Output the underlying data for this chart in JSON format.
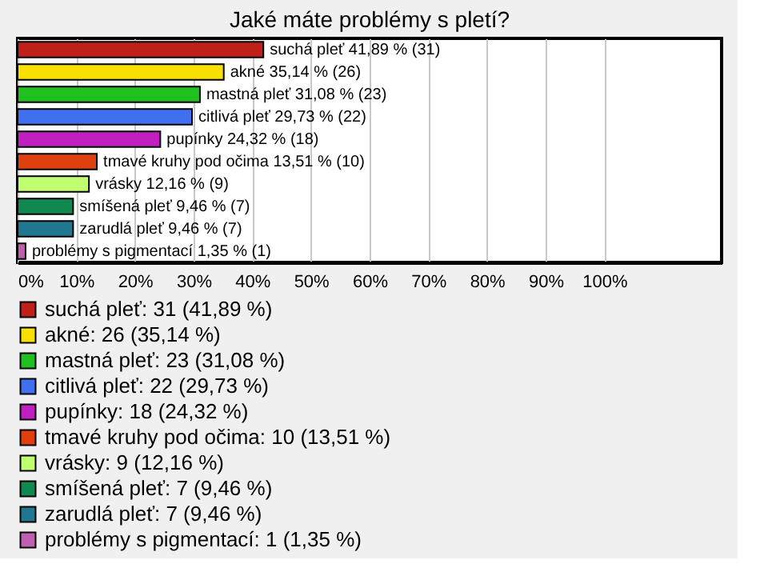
{
  "chart_data": {
    "type": "bar",
    "orientation": "horizontal",
    "title": "Jaké máte problémy s pletí?",
    "categories": [
      null,
      null,
      null,
      null,
      null,
      null,
      null,
      null,
      null,
      null
    ],
    "series": [
      {
        "name": "suchá pleť: 31 (41,89 %)",
        "color": "#c0201a",
        "values": [
          41.89,
          null,
          null,
          null,
          null,
          null,
          null,
          null,
          null,
          null
        ],
        "value_labels": [
          "suchá pleť 41,89 % (31)",
          null,
          null,
          null,
          null,
          null,
          null,
          null,
          null,
          null
        ]
      },
      {
        "name": "akné: 26 (35,14 %)",
        "color": "#f8e000",
        "values": [
          null,
          35.14,
          null,
          null,
          null,
          null,
          null,
          null,
          null,
          null
        ],
        "value_labels": [
          null,
          "akné 35,14 % (26)",
          null,
          null,
          null,
          null,
          null,
          null,
          null,
          null
        ]
      },
      {
        "name": "mastná pleť: 23 (31,08 %)",
        "color": "#20c020",
        "values": [
          null,
          null,
          31.08,
          null,
          null,
          null,
          null,
          null,
          null,
          null
        ],
        "value_labels": [
          null,
          null,
          "mastná pleť 31,08 % (23)",
          null,
          null,
          null,
          null,
          null,
          null,
          null
        ]
      },
      {
        "name": "citlivá pleť: 22 (29,73 %)",
        "color": "#4070f0",
        "values": [
          null,
          null,
          null,
          29.73,
          null,
          null,
          null,
          null,
          null,
          null
        ],
        "value_labels": [
          null,
          null,
          null,
          "citlivá pleť 29,73 % (22)",
          null,
          null,
          null,
          null,
          null,
          null
        ]
      },
      {
        "name": "pupínky: 18 (24,32 %)",
        "color": "#c020c0",
        "values": [
          null,
          null,
          null,
          null,
          24.32,
          null,
          null,
          null,
          null,
          null
        ],
        "value_labels": [
          null,
          null,
          null,
          null,
          "pupínky 24,32 % (18)",
          null,
          null,
          null,
          null,
          null
        ]
      },
      {
        "name": "tmavé kruhy pod očima: 10 (13,51 %)",
        "color": "#e04010",
        "values": [
          null,
          null,
          null,
          null,
          null,
          13.51,
          null,
          null,
          null,
          null
        ],
        "value_labels": [
          null,
          null,
          null,
          null,
          null,
          "tmavé kruhy pod očima 13,51 % (10)",
          null,
          null,
          null,
          null
        ]
      },
      {
        "name": "vrásky: 9 (12,16 %)",
        "color": "#c0ff70",
        "values": [
          null,
          null,
          null,
          null,
          null,
          null,
          12.16,
          null,
          null,
          null
        ],
        "value_labels": [
          null,
          null,
          null,
          null,
          null,
          null,
          "vrásky 12,16 % (9)",
          null,
          null,
          null
        ]
      },
      {
        "name": "smíšená pleť: 7 (9,46 %)",
        "color": "#108850",
        "values": [
          null,
          null,
          null,
          null,
          null,
          null,
          null,
          9.46,
          null,
          null
        ],
        "value_labels": [
          null,
          null,
          null,
          null,
          null,
          null,
          null,
          "smíšená pleť 9,46 % (7)",
          null,
          null
        ]
      },
      {
        "name": "zarudlá pleť: 7 (9,46 %)",
        "color": "#207890",
        "values": [
          null,
          null,
          null,
          null,
          null,
          null,
          null,
          null,
          9.46,
          null
        ],
        "value_labels": [
          null,
          null,
          null,
          null,
          null,
          null,
          null,
          null,
          "zarudlá pleť 9,46 % (7)",
          null
        ]
      },
      {
        "name": "problémy s pigmentací: 1 (1,35 %)",
        "color": "#c060b0",
        "values": [
          null,
          null,
          null,
          null,
          null,
          null,
          null,
          null,
          null,
          1.35
        ],
        "value_labels": [
          null,
          null,
          null,
          null,
          null,
          null,
          null,
          null,
          null,
          "problémy s pigmentací 1,35 % (1)"
        ]
      }
    ],
    "xlim": [
      0,
      120
    ],
    "xticks": [
      {
        "value": 0,
        "label": "0%"
      },
      {
        "value": 10,
        "label": "10%"
      },
      {
        "value": 20,
        "label": "20%"
      },
      {
        "value": 30,
        "label": "30%"
      },
      {
        "value": 40,
        "label": "40%"
      },
      {
        "value": 50,
        "label": "50%"
      },
      {
        "value": 60,
        "label": "60%"
      },
      {
        "value": 70,
        "label": "70%"
      },
      {
        "value": 80,
        "label": "80%"
      },
      {
        "value": 90,
        "label": "90%"
      },
      {
        "value": 100,
        "label": "100%"
      }
    ],
    "grid": "x",
    "legend": "bottom left",
    "tick_labels": "x"
  }
}
